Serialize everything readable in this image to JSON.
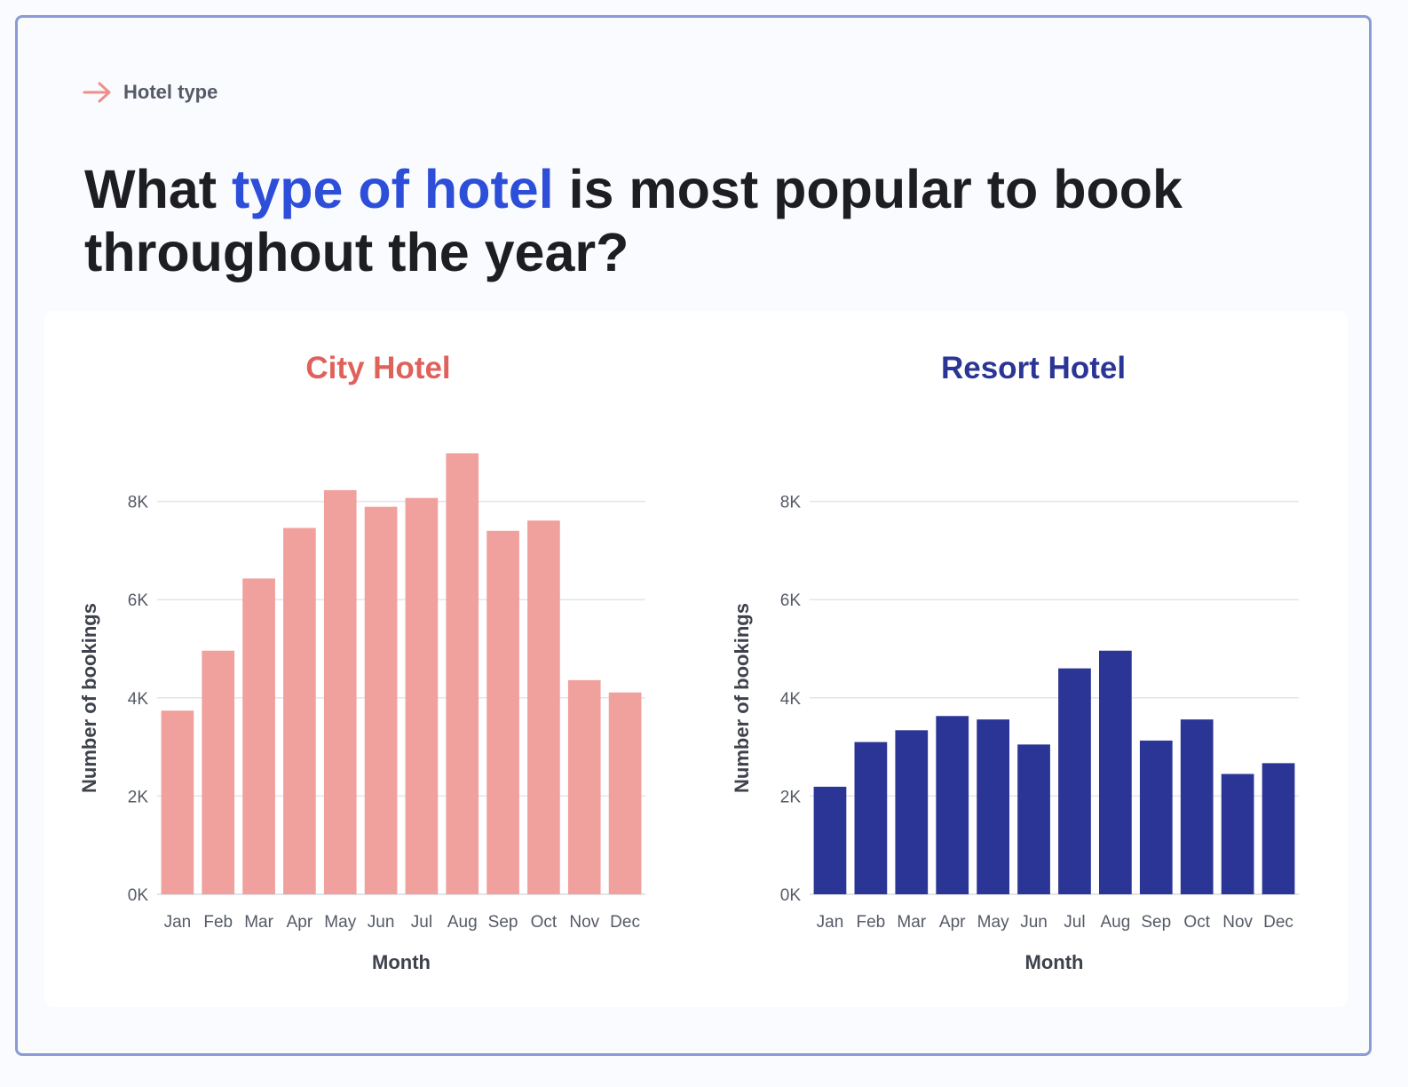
{
  "header": {
    "eyebrow_label": "Hotel type",
    "title_part1": "What ",
    "title_highlight": "type of hotel",
    "title_part2": " is most popular to book throughout the year?"
  },
  "colors": {
    "accent_blue": "#2d4ed8",
    "city_bar": "#f0a09d",
    "city_title": "#e0615a",
    "resort_bar": "#2b3595",
    "resort_title": "#2b3595",
    "arrow": "#ee8f8a",
    "frame": "#8a9bd5"
  },
  "icons": {
    "eyebrow_icon": "arrow-right-icon"
  },
  "chart_data": [
    {
      "type": "bar",
      "title": "City Hotel",
      "xlabel": "Month",
      "ylabel": "Number of bookings",
      "categories": [
        "Jan",
        "Feb",
        "Mar",
        "Apr",
        "May",
        "Jun",
        "Jul",
        "Aug",
        "Sep",
        "Oct",
        "Nov",
        "Dec"
      ],
      "values": [
        3740,
        4960,
        6430,
        7460,
        8230,
        7890,
        8070,
        8980,
        7400,
        7610,
        4360,
        4110
      ],
      "ylim": [
        0,
        9000
      ],
      "yticks": [
        0,
        2000,
        4000,
        6000,
        8000
      ],
      "ytick_labels": [
        "0K",
        "2K",
        "4K",
        "6K",
        "8K"
      ],
      "grid": true
    },
    {
      "type": "bar",
      "title": "Resort Hotel",
      "xlabel": "Month",
      "ylabel": "Number of bookings",
      "categories": [
        "Jan",
        "Feb",
        "Mar",
        "Apr",
        "May",
        "Jun",
        "Jul",
        "Aug",
        "Sep",
        "Oct",
        "Nov",
        "Dec"
      ],
      "values": [
        2190,
        3100,
        3340,
        3630,
        3560,
        3050,
        4600,
        4960,
        3130,
        3560,
        2450,
        2670
      ],
      "ylim": [
        0,
        9000
      ],
      "yticks": [
        0,
        2000,
        4000,
        6000,
        8000
      ],
      "ytick_labels": [
        "0K",
        "2K",
        "4K",
        "6K",
        "8K"
      ],
      "grid": true
    }
  ]
}
